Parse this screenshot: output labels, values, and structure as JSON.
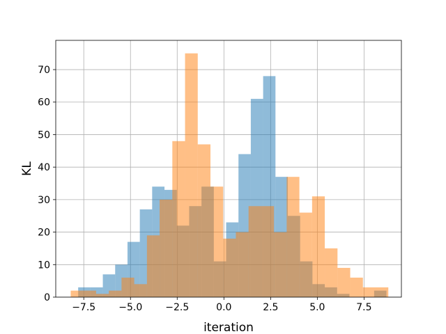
{
  "chart_data": {
    "type": "bar",
    "subtype": "overlaid-histogram",
    "title": "",
    "xlabel": "iteration",
    "ylabel": "KL",
    "xlim": [
      -9.0,
      9.5
    ],
    "ylim": [
      0,
      79
    ],
    "xticks": [
      -7.5,
      -5.0,
      -2.5,
      0.0,
      2.5,
      5.0,
      7.5
    ],
    "xtick_labels": [
      "−7.5",
      "−5.0",
      "−2.5",
      "0.0",
      "2.5",
      "5.0",
      "7.5"
    ],
    "yticks": [
      0,
      10,
      20,
      30,
      40,
      50,
      60,
      70
    ],
    "ytick_labels": [
      "0",
      "10",
      "20",
      "30",
      "40",
      "50",
      "60",
      "70"
    ],
    "grid": true,
    "legend": "none",
    "series": [
      {
        "color": "#1f77b4",
        "alpha": 0.5,
        "bins": [
          {
            "x0": -7.8,
            "x1": -7.14,
            "count": 3
          },
          {
            "x0": -7.14,
            "x1": -6.48,
            "count": 3
          },
          {
            "x0": -6.48,
            "x1": -5.82,
            "count": 7
          },
          {
            "x0": -5.82,
            "x1": -5.16,
            "count": 10
          },
          {
            "x0": -5.16,
            "x1": -4.5,
            "count": 17
          },
          {
            "x0": -4.5,
            "x1": -3.84,
            "count": 27
          },
          {
            "x0": -3.84,
            "x1": -3.18,
            "count": 34
          },
          {
            "x0": -3.18,
            "x1": -2.52,
            "count": 33
          },
          {
            "x0": -2.52,
            "x1": -1.86,
            "count": 22
          },
          {
            "x0": -1.86,
            "x1": -1.2,
            "count": 28
          },
          {
            "x0": -1.2,
            "x1": -0.54,
            "count": 34
          },
          {
            "x0": -0.54,
            "x1": 0.12,
            "count": 11
          },
          {
            "x0": 0.12,
            "x1": 0.78,
            "count": 23
          },
          {
            "x0": 0.78,
            "x1": 1.44,
            "count": 44
          },
          {
            "x0": 1.44,
            "x1": 2.1,
            "count": 61
          },
          {
            "x0": 2.1,
            "x1": 2.76,
            "count": 68
          },
          {
            "x0": 2.76,
            "x1": 3.42,
            "count": 37
          },
          {
            "x0": 3.42,
            "x1": 4.08,
            "count": 25
          },
          {
            "x0": 4.08,
            "x1": 4.74,
            "count": 11
          },
          {
            "x0": 4.74,
            "x1": 5.4,
            "count": 4
          },
          {
            "x0": 5.4,
            "x1": 6.06,
            "count": 3
          },
          {
            "x0": 6.06,
            "x1": 6.72,
            "count": 1
          },
          {
            "x0": 6.72,
            "x1": 7.38,
            "count": 0
          },
          {
            "x0": 7.38,
            "x1": 8.04,
            "count": 0
          },
          {
            "x0": 8.04,
            "x1": 8.7,
            "count": 2
          }
        ]
      },
      {
        "color": "#ff7f0e",
        "alpha": 0.5,
        "bins": [
          {
            "x0": -8.2,
            "x1": -7.52,
            "count": 2
          },
          {
            "x0": -7.52,
            "x1": -6.84,
            "count": 2
          },
          {
            "x0": -6.84,
            "x1": -6.16,
            "count": 1
          },
          {
            "x0": -6.16,
            "x1": -5.48,
            "count": 2
          },
          {
            "x0": -5.48,
            "x1": -4.8,
            "count": 6
          },
          {
            "x0": -4.8,
            "x1": -4.12,
            "count": 4
          },
          {
            "x0": -4.12,
            "x1": -3.44,
            "count": 19
          },
          {
            "x0": -3.44,
            "x1": -2.76,
            "count": 30
          },
          {
            "x0": -2.76,
            "x1": -2.08,
            "count": 48
          },
          {
            "x0": -2.08,
            "x1": -1.4,
            "count": 75
          },
          {
            "x0": -1.4,
            "x1": -0.72,
            "count": 47
          },
          {
            "x0": -0.72,
            "x1": -0.04,
            "count": 34
          },
          {
            "x0": -0.04,
            "x1": 0.64,
            "count": 18
          },
          {
            "x0": 0.64,
            "x1": 1.32,
            "count": 20
          },
          {
            "x0": 1.32,
            "x1": 2.0,
            "count": 28
          },
          {
            "x0": 2.0,
            "x1": 2.68,
            "count": 28
          },
          {
            "x0": 2.68,
            "x1": 3.36,
            "count": 20
          },
          {
            "x0": 3.36,
            "x1": 4.04,
            "count": 37
          },
          {
            "x0": 4.04,
            "x1": 4.72,
            "count": 26
          },
          {
            "x0": 4.72,
            "x1": 5.4,
            "count": 31
          },
          {
            "x0": 5.4,
            "x1": 6.08,
            "count": 15
          },
          {
            "x0": 6.08,
            "x1": 6.76,
            "count": 9
          },
          {
            "x0": 6.76,
            "x1": 7.44,
            "count": 6
          },
          {
            "x0": 7.44,
            "x1": 8.12,
            "count": 3
          },
          {
            "x0": 8.12,
            "x1": 8.8,
            "count": 3
          }
        ]
      }
    ]
  }
}
